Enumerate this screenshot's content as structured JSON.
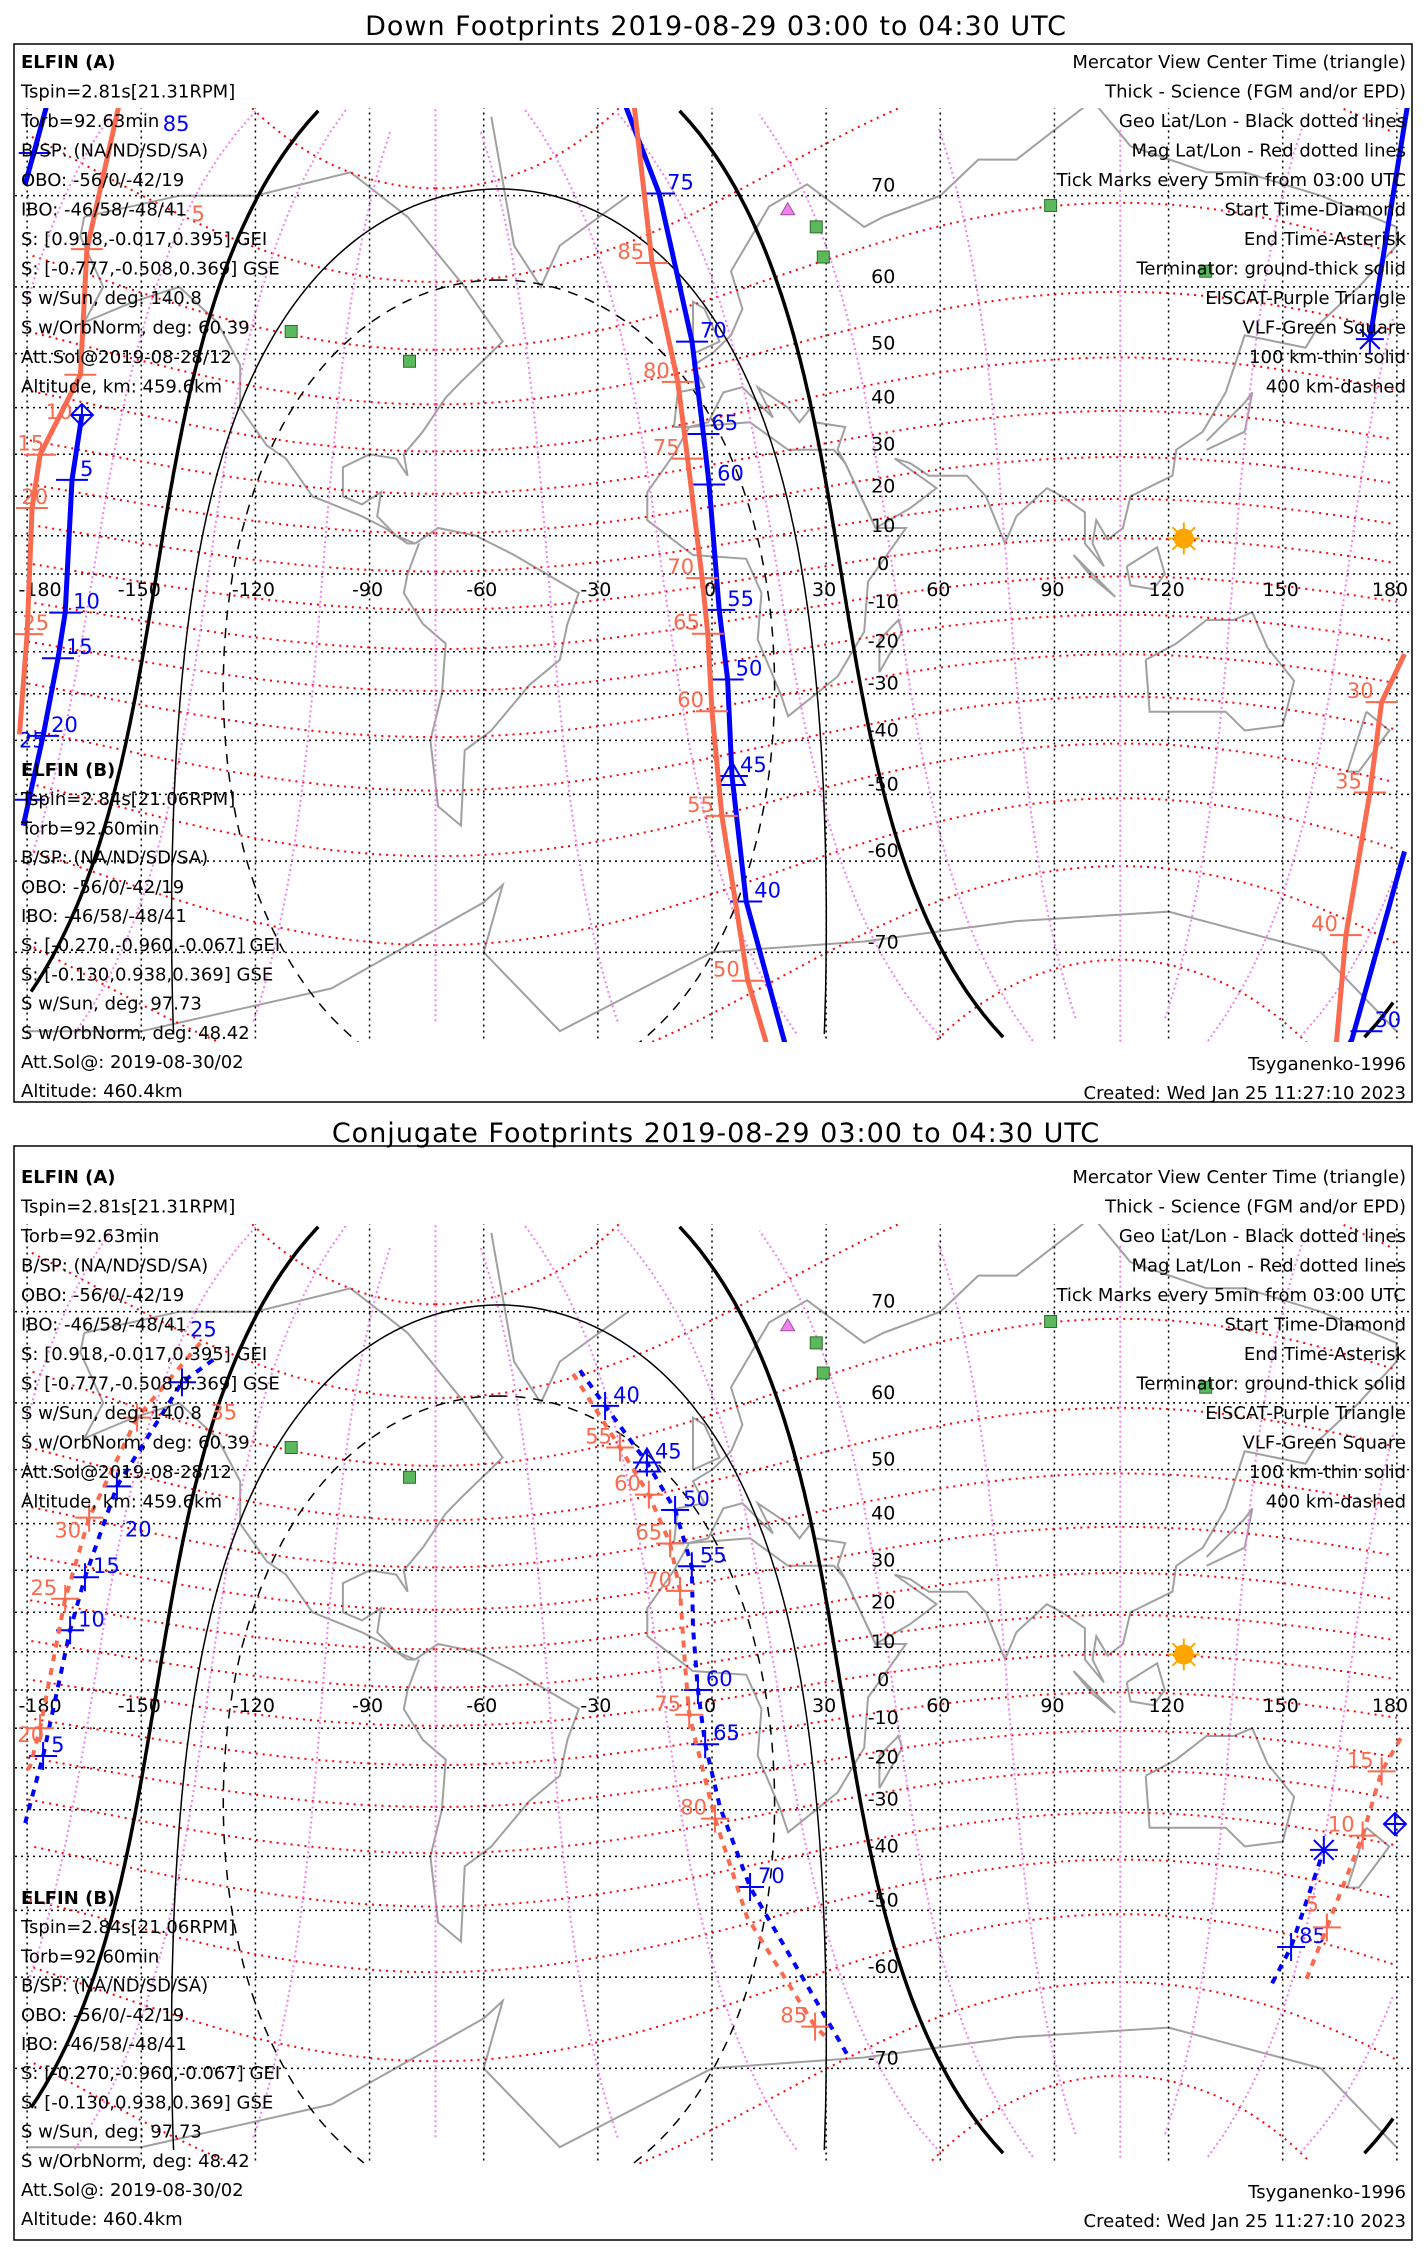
{
  "panels": [
    {
      "title": "Down Footprints 2019-08-29 03:00 to 04:30 UTC",
      "track_style": "solid",
      "tracks": [
        {
          "sat": "A",
          "segments": [
            [
              [
                -174.5,
                78.6
              ],
              [
                -180.5,
                71
              ]
            ],
            [
              [
                -165.6,
                38.5
              ],
              [
                -168.2,
                24
              ],
              [
                -170,
                -10.1
              ],
              [
                -171.9,
                -21.6
              ],
              [
                -175.8,
                -39.1
              ],
              [
                -179.5,
                -50.9
              ],
              [
                -181,
                -55
              ]
            ],
            [
              [
                -23.25,
                78
              ],
              [
                -13.9,
                70.2
              ],
              [
                -5.25,
                52
              ],
              [
                -2.25,
                34.5
              ],
              [
                -0.75,
                22.9
              ],
              [
                1.9,
                -9.4
              ],
              [
                4.1,
                -26.7
              ],
              [
                5.25,
                -46.8
              ],
              [
                9,
                -64.9
              ],
              [
                19.1,
                -76.7
              ],
              [
                20,
                -78
              ]
            ],
            [
              [
                183,
                78.6
              ],
              [
                172.9,
                52.4
              ]
            ],
            [
              [
                182,
                -58.7
              ],
              [
                168.2,
                -76.5
              ],
              [
                167,
                -78
              ]
            ]
          ],
          "ticks": [
            {
              "label": "85",
              "pos": [
                -178,
                73.5
              ]
            },
            {
              "label": "5",
              "pos": [
                -168.2,
                24
              ]
            },
            {
              "label": "10",
              "pos": [
                -170,
                -10.1
              ]
            },
            {
              "label": "15",
              "pos": [
                -171.9,
                -21.6
              ]
            },
            {
              "label": "20",
              "pos": [
                -175.8,
                -39.1
              ]
            },
            {
              "label": "25",
              "pos": [
                -179.5,
                -50.9
              ]
            },
            {
              "label": "75",
              "pos": [
                -13.9,
                70.2
              ]
            },
            {
              "label": "70",
              "pos": [
                -5.25,
                52
              ]
            },
            {
              "label": "65",
              "pos": [
                -2.25,
                34.5
              ]
            },
            {
              "label": "60",
              "pos": [
                -0.75,
                22.9
              ]
            },
            {
              "label": "55",
              "pos": [
                1.9,
                -9.4
              ]
            },
            {
              "label": "50",
              "pos": [
                4.1,
                -26.7
              ]
            },
            {
              "label": "45",
              "pos": [
                5.25,
                -46.8
              ]
            },
            {
              "label": "40",
              "pos": [
                9,
                -64.9
              ]
            },
            {
              "label": "30",
              "pos": [
                172,
                -76
              ]
            }
          ],
          "start": [
            -165.6,
            38.5
          ],
          "end": [
            172.9,
            52.4
          ],
          "center": [
            5.25,
            -46.8
          ]
        },
        {
          "sat": "B",
          "segments": [
            [
              [
                -155.6,
                78
              ],
              [
                -164.3,
                64.6
              ],
              [
                -166,
                46.3
              ],
              [
                -176.6,
                29.9
              ],
              [
                -178.7,
                17.1
              ],
              [
                -180,
                -15.6
              ],
              [
                -182,
                -38.8
              ]
            ],
            [
              [
                -20.6,
                78
              ],
              [
                -15.75,
                63
              ],
              [
                -9,
                45
              ],
              [
                -6.4,
                29
              ],
              [
                -2.6,
                -1.1
              ],
              [
                -1.1,
                -15.5
              ],
              [
                0,
                -33.9
              ],
              [
                2.6,
                -53.5
              ],
              [
                9.4,
                -72.4
              ],
              [
                14.25,
                -76.7
              ],
              [
                15,
                -78
              ]
            ],
            [
              [
                182,
                -20.6
              ],
              [
                176,
                -31.9
              ],
              [
                172.9,
                -49.7
              ],
              [
                166.6,
                -68.4
              ],
              [
                164,
                -78
              ]
            ]
          ],
          "ticks": [
            {
              "label": "5",
              "pos": [
                -164.3,
                64.6
              ]
            },
            {
              "label": "10",
              "pos": [
                -166,
                46.3
              ]
            },
            {
              "label": "15",
              "pos": [
                -176.6,
                29.9
              ]
            },
            {
              "label": "20",
              "pos": [
                -178.7,
                17.1
              ]
            },
            {
              "label": "25",
              "pos": [
                -180,
                -15.6
              ]
            },
            {
              "label": "85",
              "pos": [
                -15.75,
                63
              ]
            },
            {
              "label": "80",
              "pos": [
                -9,
                45
              ]
            },
            {
              "label": "75",
              "pos": [
                -6.4,
                29
              ]
            },
            {
              "label": "70",
              "pos": [
                -2.6,
                -1.1
              ]
            },
            {
              "label": "65",
              "pos": [
                -1.1,
                -15.5
              ]
            },
            {
              "label": "60",
              "pos": [
                0,
                -33.9
              ]
            },
            {
              "label": "55",
              "pos": [
                2.6,
                -53.5
              ]
            },
            {
              "label": "50",
              "pos": [
                9.4,
                -72.4
              ]
            },
            {
              "label": "30",
              "pos": [
                176,
                -31.9
              ]
            },
            {
              "label": "35",
              "pos": [
                172.9,
                -49.7
              ]
            },
            {
              "label": "40",
              "pos": [
                166.6,
                -68.4
              ]
            }
          ]
        }
      ]
    },
    {
      "title": "Conjugate Footprints 2019-08-29 03:00 to 04:30 UTC",
      "track_style": "dashed",
      "tracks": [
        {
          "sat": "A",
          "segments": [
            [
              [
                -131.1,
                65.2
              ],
              [
                -139.3,
                62.6
              ],
              [
                -156.4,
                47.1
              ],
              [
                -164.8,
                28.4
              ],
              [
                -168.7,
                15.5
              ],
              [
                -175.8,
                -17.1
              ],
              [
                -178.7,
                -27
              ],
              [
                -180.5,
                -33
              ]
            ],
            [
              [
                -34.7,
                64
              ],
              [
                -28.1,
                59.6
              ],
              [
                -17.1,
                51.2
              ],
              [
                -9.7,
                42.7
              ],
              [
                -5.3,
                30.9
              ],
              [
                -5,
                16.2
              ],
              [
                -3.7,
                0
              ],
              [
                -1.8,
                -14.1
              ],
              [
                2.1,
                -29.4
              ],
              [
                10,
                -45.9
              ],
              [
                35.5,
                -68.7
              ]
            ],
            [
              [
                147.2,
                -60.8
              ],
              [
                152.2,
                -55.8
              ],
              [
                160.8,
                -38.7
              ]
            ]
          ],
          "ticks": [
            {
              "label": "25",
              "pos": [
                -139.3,
                62.6
              ]
            },
            {
              "label": "20",
              "pos": [
                -156.4,
                47.1
              ]
            },
            {
              "label": "15",
              "pos": [
                -164.8,
                28.4
              ]
            },
            {
              "label": "10",
              "pos": [
                -168.7,
                15.5
              ]
            },
            {
              "label": "5",
              "pos": [
                -175.8,
                -17.1
              ]
            },
            {
              "label": "40",
              "pos": [
                -28.1,
                59.6
              ]
            },
            {
              "label": "45",
              "pos": [
                -17.1,
                51.2
              ]
            },
            {
              "label": "50",
              "pos": [
                -9.7,
                42.7
              ]
            },
            {
              "label": "55",
              "pos": [
                -5.3,
                30.9
              ]
            },
            {
              "label": "60",
              "pos": [
                -3.7,
                0
              ]
            },
            {
              "label": "65",
              "pos": [
                -1.8,
                -14.1
              ]
            },
            {
              "label": "70",
              "pos": [
                10,
                -45.9
              ]
            },
            {
              "label": "85",
              "pos": [
                152.2,
                -55.8
              ]
            }
          ],
          "start": [
            179.5,
            -33.2
          ],
          "end": [
            160.8,
            -38.7
          ],
          "center": [
            -17.1,
            51.2
          ]
        },
        {
          "sat": "B",
          "segments": [
            [
              [
                -134.5,
                67
              ],
              [
                -151.1,
                58
              ],
              [
                -163.7,
                41.2
              ],
              [
                -170,
                23.3
              ],
              [
                -176.6,
                -10
              ],
              [
                -179.2,
                -19.5
              ],
              [
                -181,
                -22
              ]
            ],
            [
              [
                -36.5,
                63.6
              ],
              [
                -24.2,
                53.6
              ],
              [
                -16.6,
                45.6
              ],
              [
                -11,
                35.9
              ],
              [
                -8.4,
                25.2
              ],
              [
                -7.1,
                6.6
              ],
              [
                -6,
                -6.5
              ],
              [
                0.8,
                -32
              ],
              [
                9.2,
                -51.1
              ],
              [
                27.1,
                -65.9
              ],
              [
                30,
                -67
              ]
            ],
            [
              [
                181,
                -12.6
              ],
              [
                176,
                -20.9
              ],
              [
                171,
                -35.7
              ],
              [
                161.6,
                -52.8
              ],
              [
                155.8,
                -60.8
              ]
            ]
          ],
          "ticks": [
            {
              "label": "35",
              "pos": [
                -151.1,
                58
              ]
            },
            {
              "label": "30",
              "pos": [
                -163.7,
                41.2
              ]
            },
            {
              "label": "25",
              "pos": [
                -170,
                23.3
              ]
            },
            {
              "label": "20",
              "pos": [
                -176.6,
                -10
              ]
            },
            {
              "label": "55",
              "pos": [
                -24.2,
                53.6
              ]
            },
            {
              "label": "60",
              "pos": [
                -16.6,
                45.6
              ]
            },
            {
              "label": "65",
              "pos": [
                -11,
                35.9
              ]
            },
            {
              "label": "70",
              "pos": [
                -8.4,
                25.2
              ]
            },
            {
              "label": "75",
              "pos": [
                -6,
                -6.5
              ]
            },
            {
              "label": "80",
              "pos": [
                0.8,
                -32
              ]
            },
            {
              "label": "85",
              "pos": [
                27.1,
                -65.9
              ]
            },
            {
              "label": "15",
              "pos": [
                176,
                -20.9
              ]
            },
            {
              "label": "10",
              "pos": [
                171,
                -35.7
              ]
            },
            {
              "label": "5",
              "pos": [
                161.6,
                -52.8
              ]
            }
          ]
        }
      ]
    }
  ],
  "info": {
    "sat_a": {
      "name": "ELFIN (A)",
      "lines": [
        "Tspin=2.81s[21.31RPM]",
        "Torb=92.63min",
        "B/SP: (NA/ND/SD/SA)",
        "OBO: -56/0/-42/19",
        "IBO: -46/58/-48/41",
        "S: [0.918,-0.017,0.395] GEI",
        "S: [-0.777,-0.508,0.369] GSE",
        "S w/Sun, deg: 140.8",
        "S w/OrbNorm, deg: 60.39",
        "Att.Sol@2019-08-28/12",
        "Altitude, km: 459.6km"
      ]
    },
    "sat_b": {
      "name": "ELFIN (B)",
      "lines": [
        "Tspin=2.84s[21.06RPM]",
        "Torb=92.60min",
        "B/SP: (NA/ND/SD/SA)",
        "OBO: -56/0/-42/19",
        "IBO: -46/58/-48/41",
        "S: [-0.270,-0.960,-0.067] GEI",
        "S: [-0.130,0.938,0.369] GSE",
        "S w/Sun, deg: 97.73",
        "S w/OrbNorm, deg: 48.42",
        "Att.Sol@: 2019-08-30/02",
        "Altitude: 460.4km"
      ]
    },
    "legend": [
      {
        "text": "Mercator View Center Time (triangle)",
        "color": "#000000"
      },
      {
        "text": "Thick - Science (FGM and/or EPD)",
        "color": "#000000"
      },
      {
        "text": "Geo Lat/Lon - Black dotted lines",
        "color": "#000000"
      },
      {
        "text": "Mag Lat/Lon - Red dotted lines",
        "color": "#ff0000"
      },
      {
        "text": "Tick Marks every 5min from 03:00 UTC",
        "color": "#000000"
      },
      {
        "text": "Start Time-Diamond",
        "color": "#000000"
      },
      {
        "text": "End Time-Asterisk",
        "color": "#000000"
      },
      {
        "text": "Terminator: ground-thick solid",
        "color": "#000000"
      },
      {
        "text": "EISCAT-Purple Triangle",
        "color": "#ee82ee"
      },
      {
        "text": "VLF-Green Square",
        "color": "#5cb85c"
      },
      {
        "text": "100 km-thin solid",
        "color": "#000000"
      },
      {
        "text": "400 km-dashed",
        "color": "#000000"
      }
    ],
    "model": "Tsyganenko-1996",
    "created": "Created: Wed Jan 25 11:27:10 2023"
  },
  "map": {
    "lat_labels": [
      "70",
      "60",
      "50",
      "40",
      "30",
      "20",
      "10",
      "0",
      "-10",
      "-20",
      "-30",
      "-40",
      "-50",
      "-60",
      "-70"
    ],
    "lon_labels": [
      "-180",
      "-150",
      "-120",
      "-90",
      "-60",
      "-30",
      "0",
      "30",
      "60",
      "90",
      "120",
      "150",
      "180"
    ],
    "sun": [
      124,
      9.3
    ],
    "eiscat": [
      [
        18,
        77.5
      ],
      [
        19.9,
        68.7
      ]
    ],
    "vlf": [
      [
        27.4,
        67
      ],
      [
        29.25,
        63.7
      ],
      [
        89,
        69.1
      ],
      [
        129.75,
        62
      ],
      [
        -110.6,
        53.6
      ],
      [
        -79.5,
        48.7
      ]
    ]
  },
  "colors": {
    "sat_a": "#0000ff",
    "sat_b": "#fa6a4e",
    "mag_grid": "#ff0000",
    "mag_meridian": "#ee82ee",
    "coast": "#a0a0a0",
    "sun": "#ffa500",
    "eiscat": "#ee82ee",
    "vlf": "#5cb85c"
  }
}
